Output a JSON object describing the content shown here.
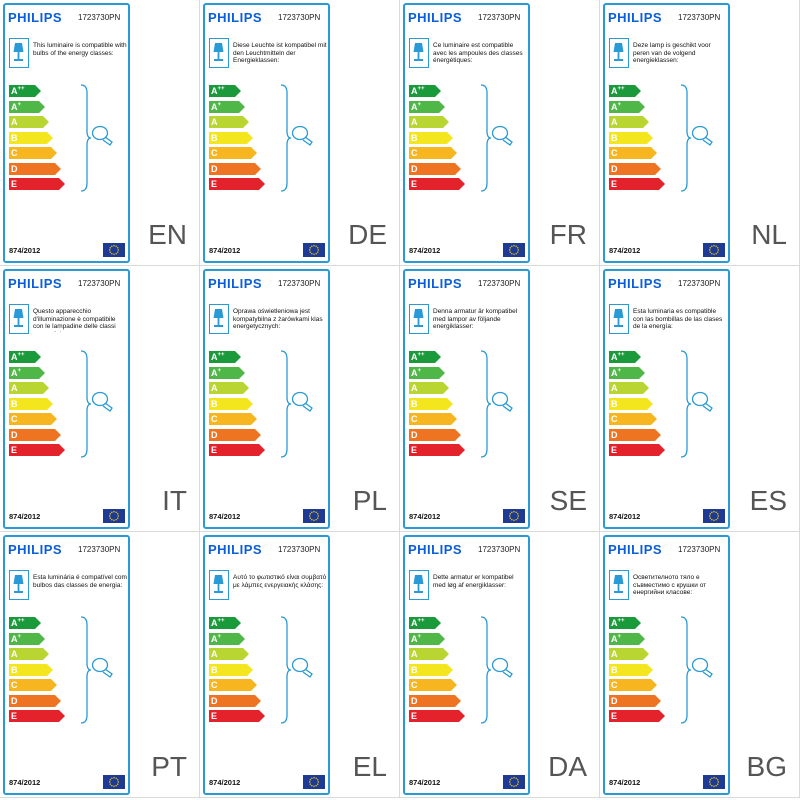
{
  "brand": "PHILIPS",
  "model": "1723730PN",
  "regulation": "874/2012",
  "energy_classes": [
    {
      "letter": "A",
      "sup": "++",
      "color": "#1a9a3b",
      "width": 26
    },
    {
      "letter": "A",
      "sup": "+",
      "color": "#4fb648",
      "width": 30
    },
    {
      "letter": "A",
      "sup": "",
      "color": "#b9d532",
      "width": 34
    },
    {
      "letter": "B",
      "sup": "",
      "color": "#f4e61e",
      "width": 38
    },
    {
      "letter": "C",
      "sup": "",
      "color": "#f7b520",
      "width": 42
    },
    {
      "letter": "D",
      "sup": "",
      "color": "#ee7422",
      "width": 46
    },
    {
      "letter": "E",
      "sup": "",
      "color": "#e3222b",
      "width": 50
    }
  ],
  "labels": [
    {
      "lang": "EN",
      "text": "This luminaire is compatible with bulbs of the energy classes:"
    },
    {
      "lang": "DE",
      "text": "Diese Leuchte ist kompatibel mit den Leuchtmitteln der Energieklassen:"
    },
    {
      "lang": "FR",
      "text": "Ce luminaire est compatible avec les ampoules des classes énergétiques:"
    },
    {
      "lang": "NL",
      "text": "Deze lamp is geschikt voor peren van de volgend energieklassen:"
    },
    {
      "lang": "IT",
      "text": "Questo apparecchio d'illuminazione è compatibile con le lampadine delle classi energetiche:"
    },
    {
      "lang": "PL",
      "text": "Oprawa oświetleniowa jest kompatybilna z żarówkami klas energetycznych:"
    },
    {
      "lang": "SE",
      "text": "Denna armatur är kompatibel med lampor av följande energiklasser:"
    },
    {
      "lang": "ES",
      "text": "Esta luminaria es compatible con las bombillas de las clases de la energía:"
    },
    {
      "lang": "PT",
      "text": "Esta luminária é compatível com bulbos das classes de energia:"
    },
    {
      "lang": "EL",
      "text": "Αυτό το φωτιστικό είναι συμβατό με λάμπες ενεργειακής κλάσης:"
    },
    {
      "lang": "DA",
      "text": "Dette armatur er kompatibel med løg af energiklasser:"
    },
    {
      "lang": "BG",
      "text": "Осветителното тяло е съвместимо с крушки от енергийни класове:"
    }
  ]
}
